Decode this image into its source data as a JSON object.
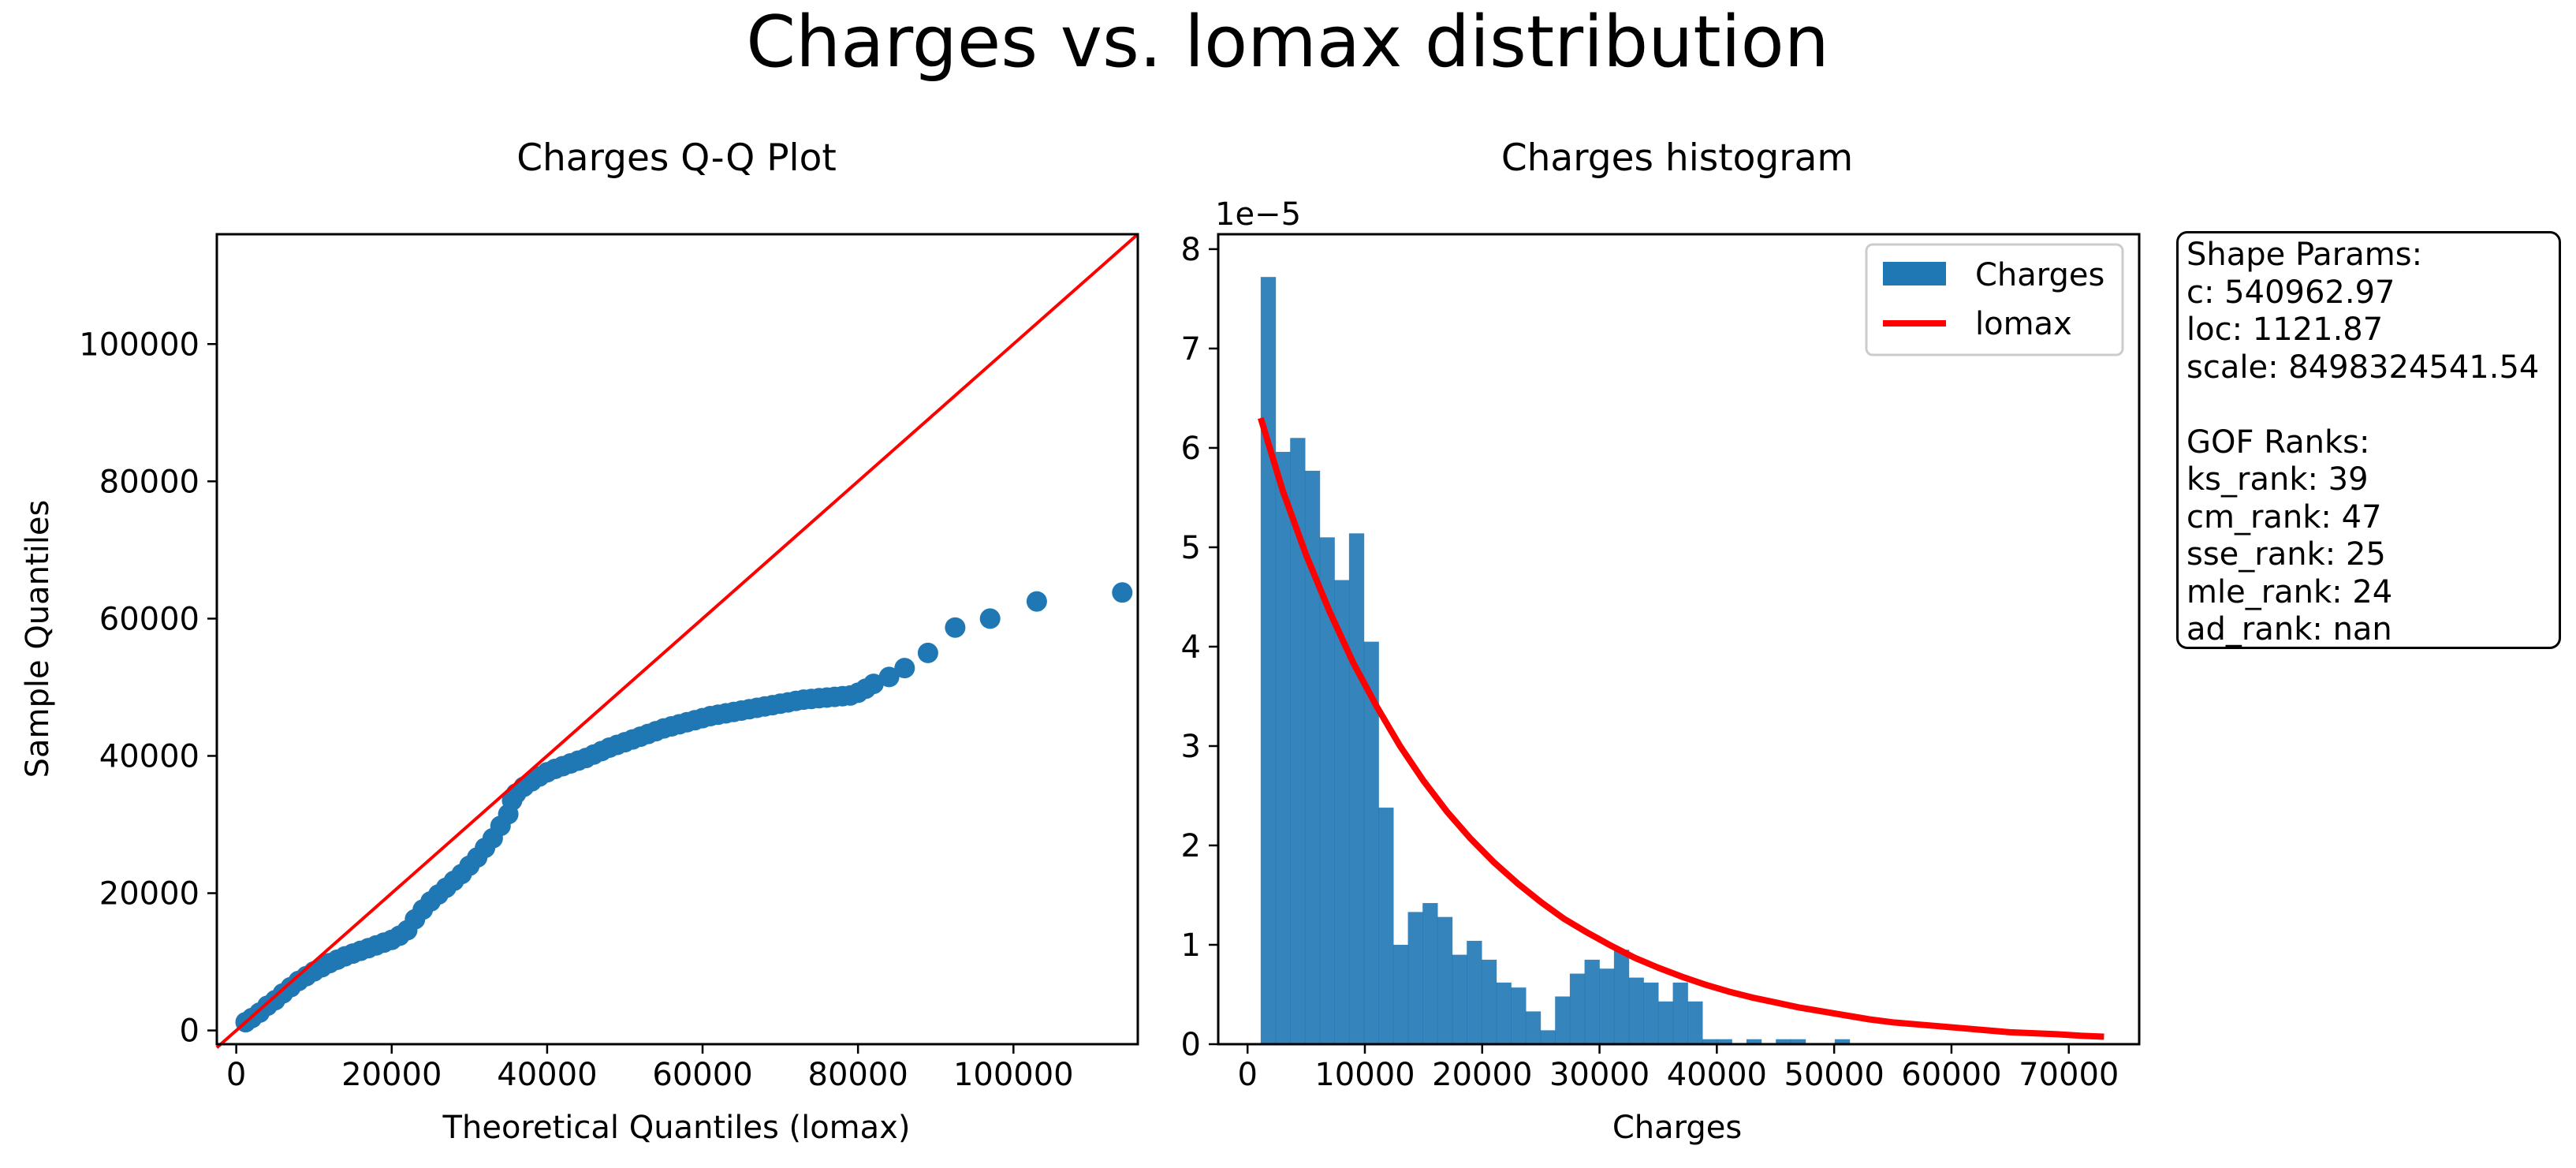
{
  "figure_title": "Charges vs. lomax distribution",
  "colors": {
    "points": "#1f77b4",
    "bars": "#1f77b4",
    "fit_line": "#ff0000",
    "ref_line": "#ff0000"
  },
  "stats": {
    "shape_header": "Shape Params:",
    "c": "c: 540962.97",
    "loc": "loc: 1121.87",
    "scale": "scale: 8498324541.54",
    "gof_header": "GOF Ranks:",
    "ks": "ks_rank: 39",
    "cm": "cm_rank: 47",
    "sse": "sse_rank: 25",
    "mle": "mle_rank: 24",
    "ad": "ad_rank: nan"
  },
  "chart_data": [
    {
      "type": "scatter",
      "title": "Charges Q-Q Plot",
      "xlabel": "Theoretical Quantiles (lomax)",
      "ylabel": "Sample Quantiles",
      "xlim": [
        -2500,
        116000
      ],
      "ylim": [
        -2000,
        116000
      ],
      "xticks": [
        0,
        20000,
        40000,
        60000,
        80000,
        100000
      ],
      "yticks": [
        0,
        20000,
        40000,
        60000,
        80000,
        100000
      ],
      "grid": false,
      "reference_line": {
        "from": [
          -2500,
          -2500
        ],
        "to": [
          116000,
          116000
        ]
      },
      "points": [
        [
          1200,
          1200
        ],
        [
          2000,
          1800
        ],
        [
          3000,
          2600
        ],
        [
          4000,
          3600
        ],
        [
          5000,
          4400
        ],
        [
          6000,
          5400
        ],
        [
          7000,
          6300
        ],
        [
          8000,
          7200
        ],
        [
          9000,
          7900
        ],
        [
          10000,
          8600
        ],
        [
          11000,
          9200
        ],
        [
          12000,
          9800
        ],
        [
          13000,
          10300
        ],
        [
          14000,
          10800
        ],
        [
          15000,
          11200
        ],
        [
          16000,
          11600
        ],
        [
          17000,
          12000
        ],
        [
          18000,
          12400
        ],
        [
          19000,
          12800
        ],
        [
          20000,
          13200
        ],
        [
          21000,
          13800
        ],
        [
          22000,
          14600
        ],
        [
          23000,
          16200
        ],
        [
          24000,
          17600
        ],
        [
          25000,
          18800
        ],
        [
          26000,
          19800
        ],
        [
          27000,
          20800
        ],
        [
          28000,
          21800
        ],
        [
          29000,
          22800
        ],
        [
          30000,
          24000
        ],
        [
          31000,
          25200
        ],
        [
          32000,
          26600
        ],
        [
          33000,
          28000
        ],
        [
          34000,
          29800
        ],
        [
          35000,
          31500
        ],
        [
          35500,
          33500
        ],
        [
          36000,
          34500
        ],
        [
          37000,
          35500
        ],
        [
          38000,
          36300
        ],
        [
          39000,
          37000
        ],
        [
          40000,
          37600
        ],
        [
          41000,
          38100
        ],
        [
          42000,
          38500
        ],
        [
          43000,
          38900
        ],
        [
          44000,
          39300
        ],
        [
          45000,
          39700
        ],
        [
          46000,
          40200
        ],
        [
          47000,
          40700
        ],
        [
          48000,
          41200
        ],
        [
          49000,
          41600
        ],
        [
          50000,
          42000
        ],
        [
          51000,
          42400
        ],
        [
          52000,
          42800
        ],
        [
          53000,
          43200
        ],
        [
          54000,
          43600
        ],
        [
          55000,
          44000
        ],
        [
          56000,
          44300
        ],
        [
          57000,
          44600
        ],
        [
          58000,
          44900
        ],
        [
          59000,
          45200
        ],
        [
          60000,
          45500
        ],
        [
          61000,
          45800
        ],
        [
          62000,
          46000
        ],
        [
          63000,
          46200
        ],
        [
          64000,
          46400
        ],
        [
          65000,
          46600
        ],
        [
          66000,
          46800
        ],
        [
          67000,
          47000
        ],
        [
          68000,
          47200
        ],
        [
          69000,
          47400
        ],
        [
          70000,
          47600
        ],
        [
          71000,
          47800
        ],
        [
          72000,
          48000
        ],
        [
          73000,
          48200
        ],
        [
          74000,
          48300
        ],
        [
          75000,
          48400
        ],
        [
          76000,
          48500
        ],
        [
          77000,
          48600
        ],
        [
          78000,
          48700
        ],
        [
          79000,
          48800
        ],
        [
          80000,
          49200
        ],
        [
          81000,
          49800
        ],
        [
          82000,
          50500
        ],
        [
          84000,
          51500
        ],
        [
          86000,
          52800
        ],
        [
          89000,
          55000
        ],
        [
          92500,
          58700
        ],
        [
          97000,
          60000
        ],
        [
          103000,
          62500
        ],
        [
          114000,
          63800
        ]
      ]
    },
    {
      "type": "bar",
      "title": "Charges histogram",
      "xlabel": "Charges",
      "ylabel": "",
      "offset_label": "1e−5",
      "xlim": [
        -2500,
        76000
      ],
      "ylim": [
        0,
        8.15
      ],
      "xticks": [
        0,
        10000,
        20000,
        30000,
        40000,
        50000,
        60000,
        70000
      ],
      "yticks": [
        0,
        1,
        2,
        3,
        4,
        5,
        6,
        7,
        8
      ],
      "grid": false,
      "legend_position": "top-right",
      "bin_start": 1121.87,
      "bin_width": 1254.6,
      "series": [
        {
          "name": "Charges",
          "kind": "histogram",
          "values": [
            7.72,
            5.96,
            6.1,
            5.77,
            5.1,
            4.67,
            5.14,
            4.05,
            2.38,
            1.0,
            1.33,
            1.42,
            1.28,
            0.9,
            1.04,
            0.85,
            0.62,
            0.57,
            0.33,
            0.14,
            0.48,
            0.71,
            0.85,
            0.76,
            0.95,
            0.67,
            0.62,
            0.43,
            0.62,
            0.43,
            0.05,
            0.05,
            0.0,
            0.05,
            0.0,
            0.05,
            0.05,
            0.0,
            0.0,
            0.05,
            0.0,
            0.0,
            0.0,
            0.0,
            0.0,
            0.0,
            0.0,
            0.0,
            0.0,
            0.0,
            0.0,
            0.0,
            0.0,
            0.0,
            0.0,
            0.0,
            0.0
          ]
        },
        {
          "name": "lomax",
          "kind": "line",
          "x": [
            1121.87,
            3000,
            5000,
            7000,
            9000,
            11000,
            13000,
            15000,
            17000,
            19000,
            21000,
            23000,
            25000,
            27000,
            29000,
            31000,
            33000,
            35000,
            37000,
            39000,
            41000,
            43000,
            45000,
            47000,
            49000,
            51000,
            53000,
            55000,
            57000,
            59000,
            61000,
            63000,
            65000,
            67000,
            69000,
            71000,
            73000
          ],
          "y": [
            6.3,
            5.57,
            4.92,
            4.35,
            3.84,
            3.4,
            3.0,
            2.65,
            2.34,
            2.07,
            1.83,
            1.62,
            1.43,
            1.26,
            1.12,
            0.99,
            0.87,
            0.77,
            0.68,
            0.6,
            0.53,
            0.47,
            0.42,
            0.37,
            0.33,
            0.29,
            0.25,
            0.22,
            0.2,
            0.18,
            0.16,
            0.14,
            0.12,
            0.11,
            0.1,
            0.085,
            0.075
          ]
        }
      ]
    }
  ]
}
